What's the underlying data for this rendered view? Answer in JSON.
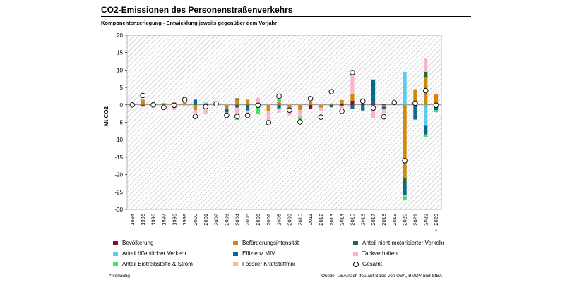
{
  "chart_data": {
    "type": "bar",
    "title": "CO2-Emissionen des Personenstraßenverkehrs",
    "subtitle": "Komponentenzerlegung - Entwicklung jeweils gegenüber dem Vorjahr",
    "ylabel": "Mt CO2",
    "ylim": [
      -30,
      20
    ],
    "yticks": [
      20,
      15,
      10,
      5,
      0,
      -5,
      -10,
      -15,
      -20,
      -25,
      -30
    ],
    "categories": [
      "1994",
      "1995",
      "1996",
      "1997",
      "1998",
      "1999",
      "2000",
      "2001",
      "2002",
      "2003",
      "2004",
      "2005",
      "2006",
      "2007",
      "2008",
      "2009",
      "2010",
      "2011",
      "2012",
      "2013",
      "2014",
      "2015",
      "2016",
      "2017",
      "2018",
      "2019",
      "2020",
      "2021",
      "2022",
      "2023"
    ],
    "category_marks": {
      "2023": "*"
    },
    "legend_placement": "bottom",
    "series": [
      {
        "name": "Bevölkerung",
        "color": "#8b0a2f",
        "values": [
          0,
          0,
          0,
          0,
          0,
          0,
          0,
          0,
          0,
          0,
          0,
          0,
          0,
          0,
          0,
          0,
          0,
          -1.2,
          0,
          0,
          0.3,
          1.2,
          0.4,
          0.3,
          0.2,
          0,
          0,
          0,
          0,
          0
        ]
      },
      {
        "name": "Beförderungsintensität",
        "color": "#d4870a",
        "values": [
          0,
          1.4,
          0,
          0.5,
          0.7,
          1.6,
          -1.5,
          -1.0,
          -0.2,
          -1.0,
          1.5,
          1.5,
          -0.5,
          -1.8,
          1.0,
          -1.5,
          -1.5,
          1.0,
          -0.8,
          0.4,
          1.1,
          2.0,
          0.5,
          -1.5,
          -0.5,
          0,
          -21.0,
          4.5,
          8.0,
          3.0
        ]
      },
      {
        "name": "Anteil nicht-motorisierter Verkehr",
        "color": "#1e6b34",
        "values": [
          0,
          0,
          0,
          0,
          0,
          0.2,
          0,
          0.2,
          0,
          0,
          0.4,
          0,
          0,
          0,
          0,
          0,
          0,
          0,
          0,
          0,
          0,
          0,
          0,
          0,
          0,
          0,
          -1.5,
          0,
          1.5,
          0
        ]
      },
      {
        "name": "Anteil öffentlicher Verkehr",
        "color": "#5bcbef",
        "values": [
          0,
          0.2,
          0,
          0,
          0,
          0,
          0,
          0.5,
          0,
          0,
          0,
          0,
          0,
          0,
          0,
          0,
          0,
          0,
          0,
          0,
          0,
          0,
          0,
          0,
          0,
          0,
          9.5,
          0,
          -6.0,
          0
        ]
      },
      {
        "name": "Effizienz MIV",
        "color": "#0a6a8b",
        "values": [
          0,
          -0.5,
          0,
          0,
          0,
          0.6,
          1.5,
          0,
          0,
          -1.2,
          -0.8,
          -1.6,
          0,
          0,
          -1.0,
          0,
          0,
          0,
          0,
          -0.7,
          -0.3,
          -1.2,
          -1.6,
          7.0,
          -0.8,
          0,
          -3.5,
          -4.2,
          -2.5,
          -1.5
        ]
      },
      {
        "name": "Tankverhalten",
        "color": "#f7b6cc",
        "values": [
          0,
          0,
          0,
          0,
          -1.5,
          -0.5,
          -2.0,
          -1.5,
          0,
          -0.5,
          -2.5,
          -1.5,
          2.0,
          -3.2,
          -1.2,
          -1.5,
          -2.0,
          0.6,
          -1.0,
          0,
          -1.2,
          6.0,
          0,
          -2.3,
          -1.0,
          0,
          -0.2,
          0,
          4.0,
          0
        ]
      },
      {
        "name": "Anteil Biotreibstoffe & Strom",
        "color": "#38e85c",
        "values": [
          0,
          0,
          0,
          0,
          0,
          0,
          0,
          0,
          0,
          0,
          -1.0,
          -0.5,
          -2.0,
          0,
          0.8,
          0,
          -1.0,
          0,
          0,
          0,
          0,
          0,
          0,
          0,
          0,
          0,
          -1.2,
          0,
          -0.8,
          -0.6
        ]
      },
      {
        "name": "Fossiler Kraftstoffmix",
        "color": "#f4c070",
        "values": [
          0,
          0,
          0,
          0,
          0,
          0,
          0,
          0,
          0,
          0,
          0,
          0,
          0,
          0,
          0,
          0,
          0,
          0,
          0,
          0,
          0,
          0,
          0,
          0,
          0,
          0,
          0,
          0,
          0,
          0
        ]
      }
    ],
    "total": {
      "name": "Gesamt",
      "values": [
        0,
        2.7,
        0,
        -0.7,
        -0.1,
        1.5,
        -3.3,
        -0.5,
        0.3,
        -3.0,
        -3.3,
        -3.0,
        -0.1,
        -5.1,
        2.5,
        -1.5,
        -4.9,
        1.8,
        -3.5,
        3.8,
        -1.8,
        9.3,
        1.1,
        -0.9,
        -3.4,
        0.7,
        -16.0,
        0.5,
        4.1,
        -0.1
      ]
    }
  },
  "footnote": "* vorläufig",
  "source": "Quelle: UBA nach ifeu auf Basis von UBA, BMDV und StBA"
}
